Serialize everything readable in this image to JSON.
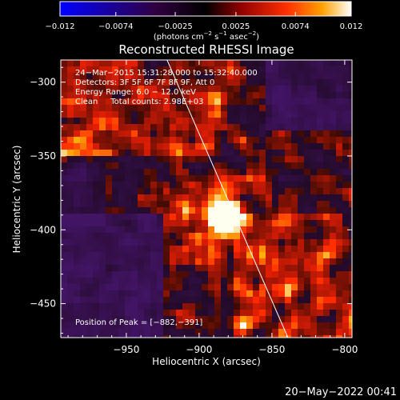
{
  "chart_data": {
    "type": "heatmap",
    "title": "Reconstructed RHESSI Image",
    "xlabel": "Heliocentric X (arcsec)",
    "ylabel": "Heliocentric Y (arcsec)",
    "xlim": [
      -995,
      -795
    ],
    "ylim": [
      -473,
      -285
    ],
    "x_ticks": [
      -950,
      -900,
      -850,
      -800
    ],
    "y_ticks": [
      -300,
      -350,
      -400,
      -450
    ],
    "x_tick_labels": [
      "−950",
      "−900",
      "−850",
      "−800"
    ],
    "y_tick_labels": [
      "−300",
      "−350",
      "−400",
      "−450"
    ],
    "colorbar": {
      "range": [
        -0.012,
        0.012
      ],
      "tick_values": [
        -0.012,
        -0.0074,
        -0.0025,
        0.0025,
        0.0074,
        0.012
      ],
      "tick_labels": [
        "−0.012",
        "−0.0074",
        "−0.0025",
        "0.0025",
        "0.0074",
        "0.012"
      ],
      "unit_parts": [
        "(photons cm",
        "−2",
        " s",
        "−1",
        " asec",
        "−2",
        ")"
      ]
    },
    "info_lines": [
      "24−Mar−2015 15:31:28.000 to 15:32:40.000",
      "Detectors: 3F 5F 6F 7F 8F 9F, Att 0",
      "Energy Range: 6.0 − 12.0 keV",
      "Clean     Total counts: 2.98E+03"
    ],
    "peak_label": "Position of Peak = [−882,−391]",
    "peak": [
      -882,
      -391
    ],
    "limb_line": {
      "x": [
        -922,
        -839
      ],
      "y": [
        -285,
        -473
      ]
    }
  },
  "footer": {
    "date": "20−May−2022 00:41"
  }
}
